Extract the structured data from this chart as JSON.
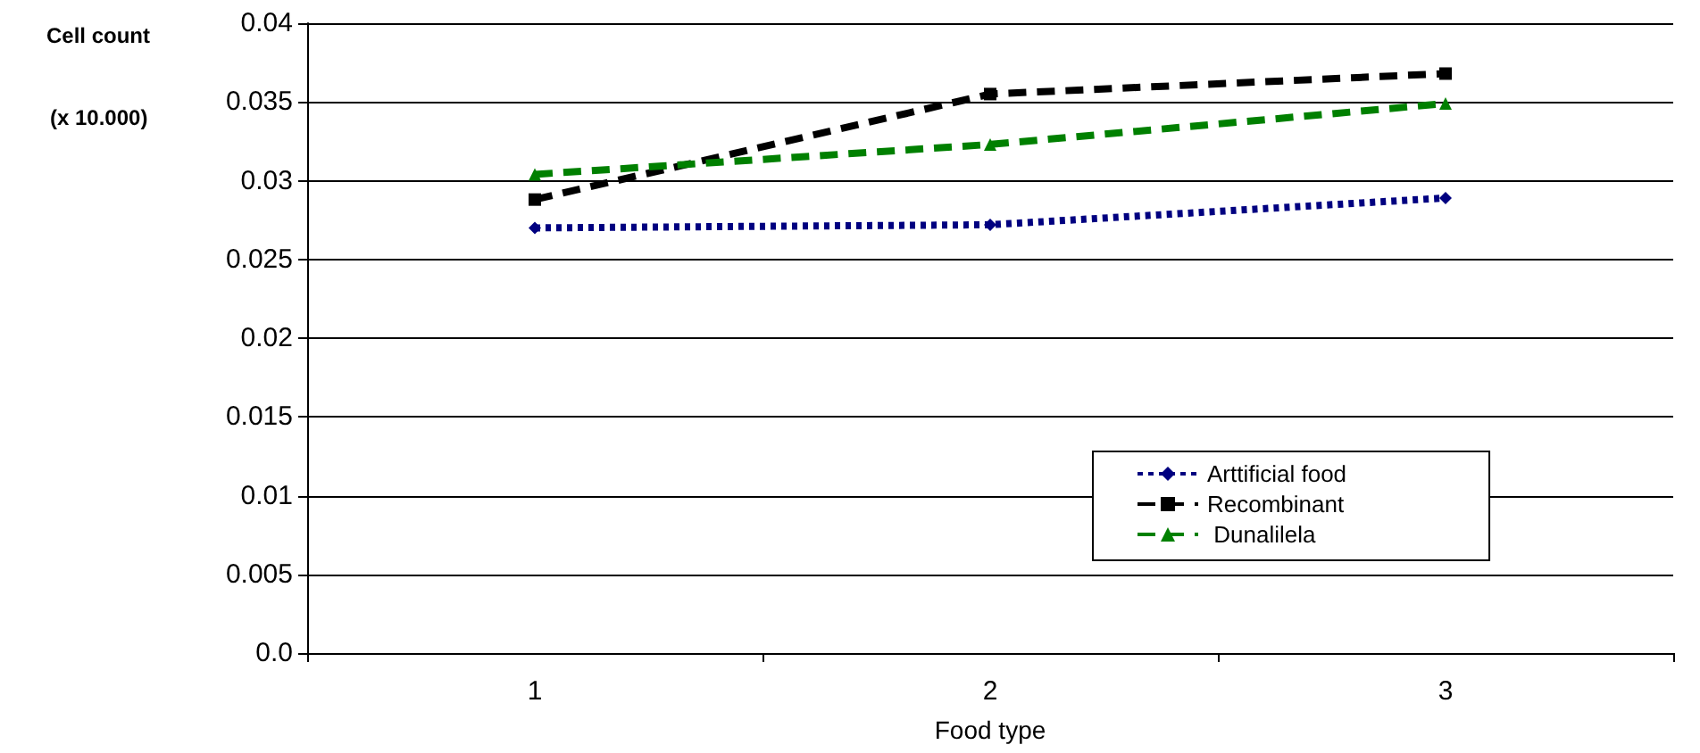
{
  "chart_data": {
    "type": "line",
    "xlabel": "Food type",
    "ylabel": "Cell count",
    "annotations": [
      "(x 10.000)"
    ],
    "categories": [
      "1",
      "2",
      "3"
    ],
    "series": [
      {
        "name": "Arttificial food",
        "color": "#000080",
        "values": [
          0.027,
          0.0272,
          0.0289
        ],
        "marker": "diamond",
        "line_style": "dotted"
      },
      {
        "name": "Recombinant",
        "color": "#000000",
        "values": [
          0.0288,
          0.0355,
          0.0368
        ],
        "marker": "square",
        "line_style": "dashed"
      },
      {
        "name": " Dunalilela",
        "color": "#008000",
        "values": [
          0.0304,
          0.0323,
          0.0349
        ],
        "marker": "triangle",
        "line_style": "dashed"
      }
    ],
    "ylim": [
      0,
      0.04
    ],
    "yticks": [
      {
        "value": 0,
        "label": "0.0"
      },
      0.005,
      0.01,
      0.015,
      0.02,
      0.025,
      0.03,
      0.035,
      0.04
    ],
    "grid": "y",
    "legend": "bottom right"
  }
}
